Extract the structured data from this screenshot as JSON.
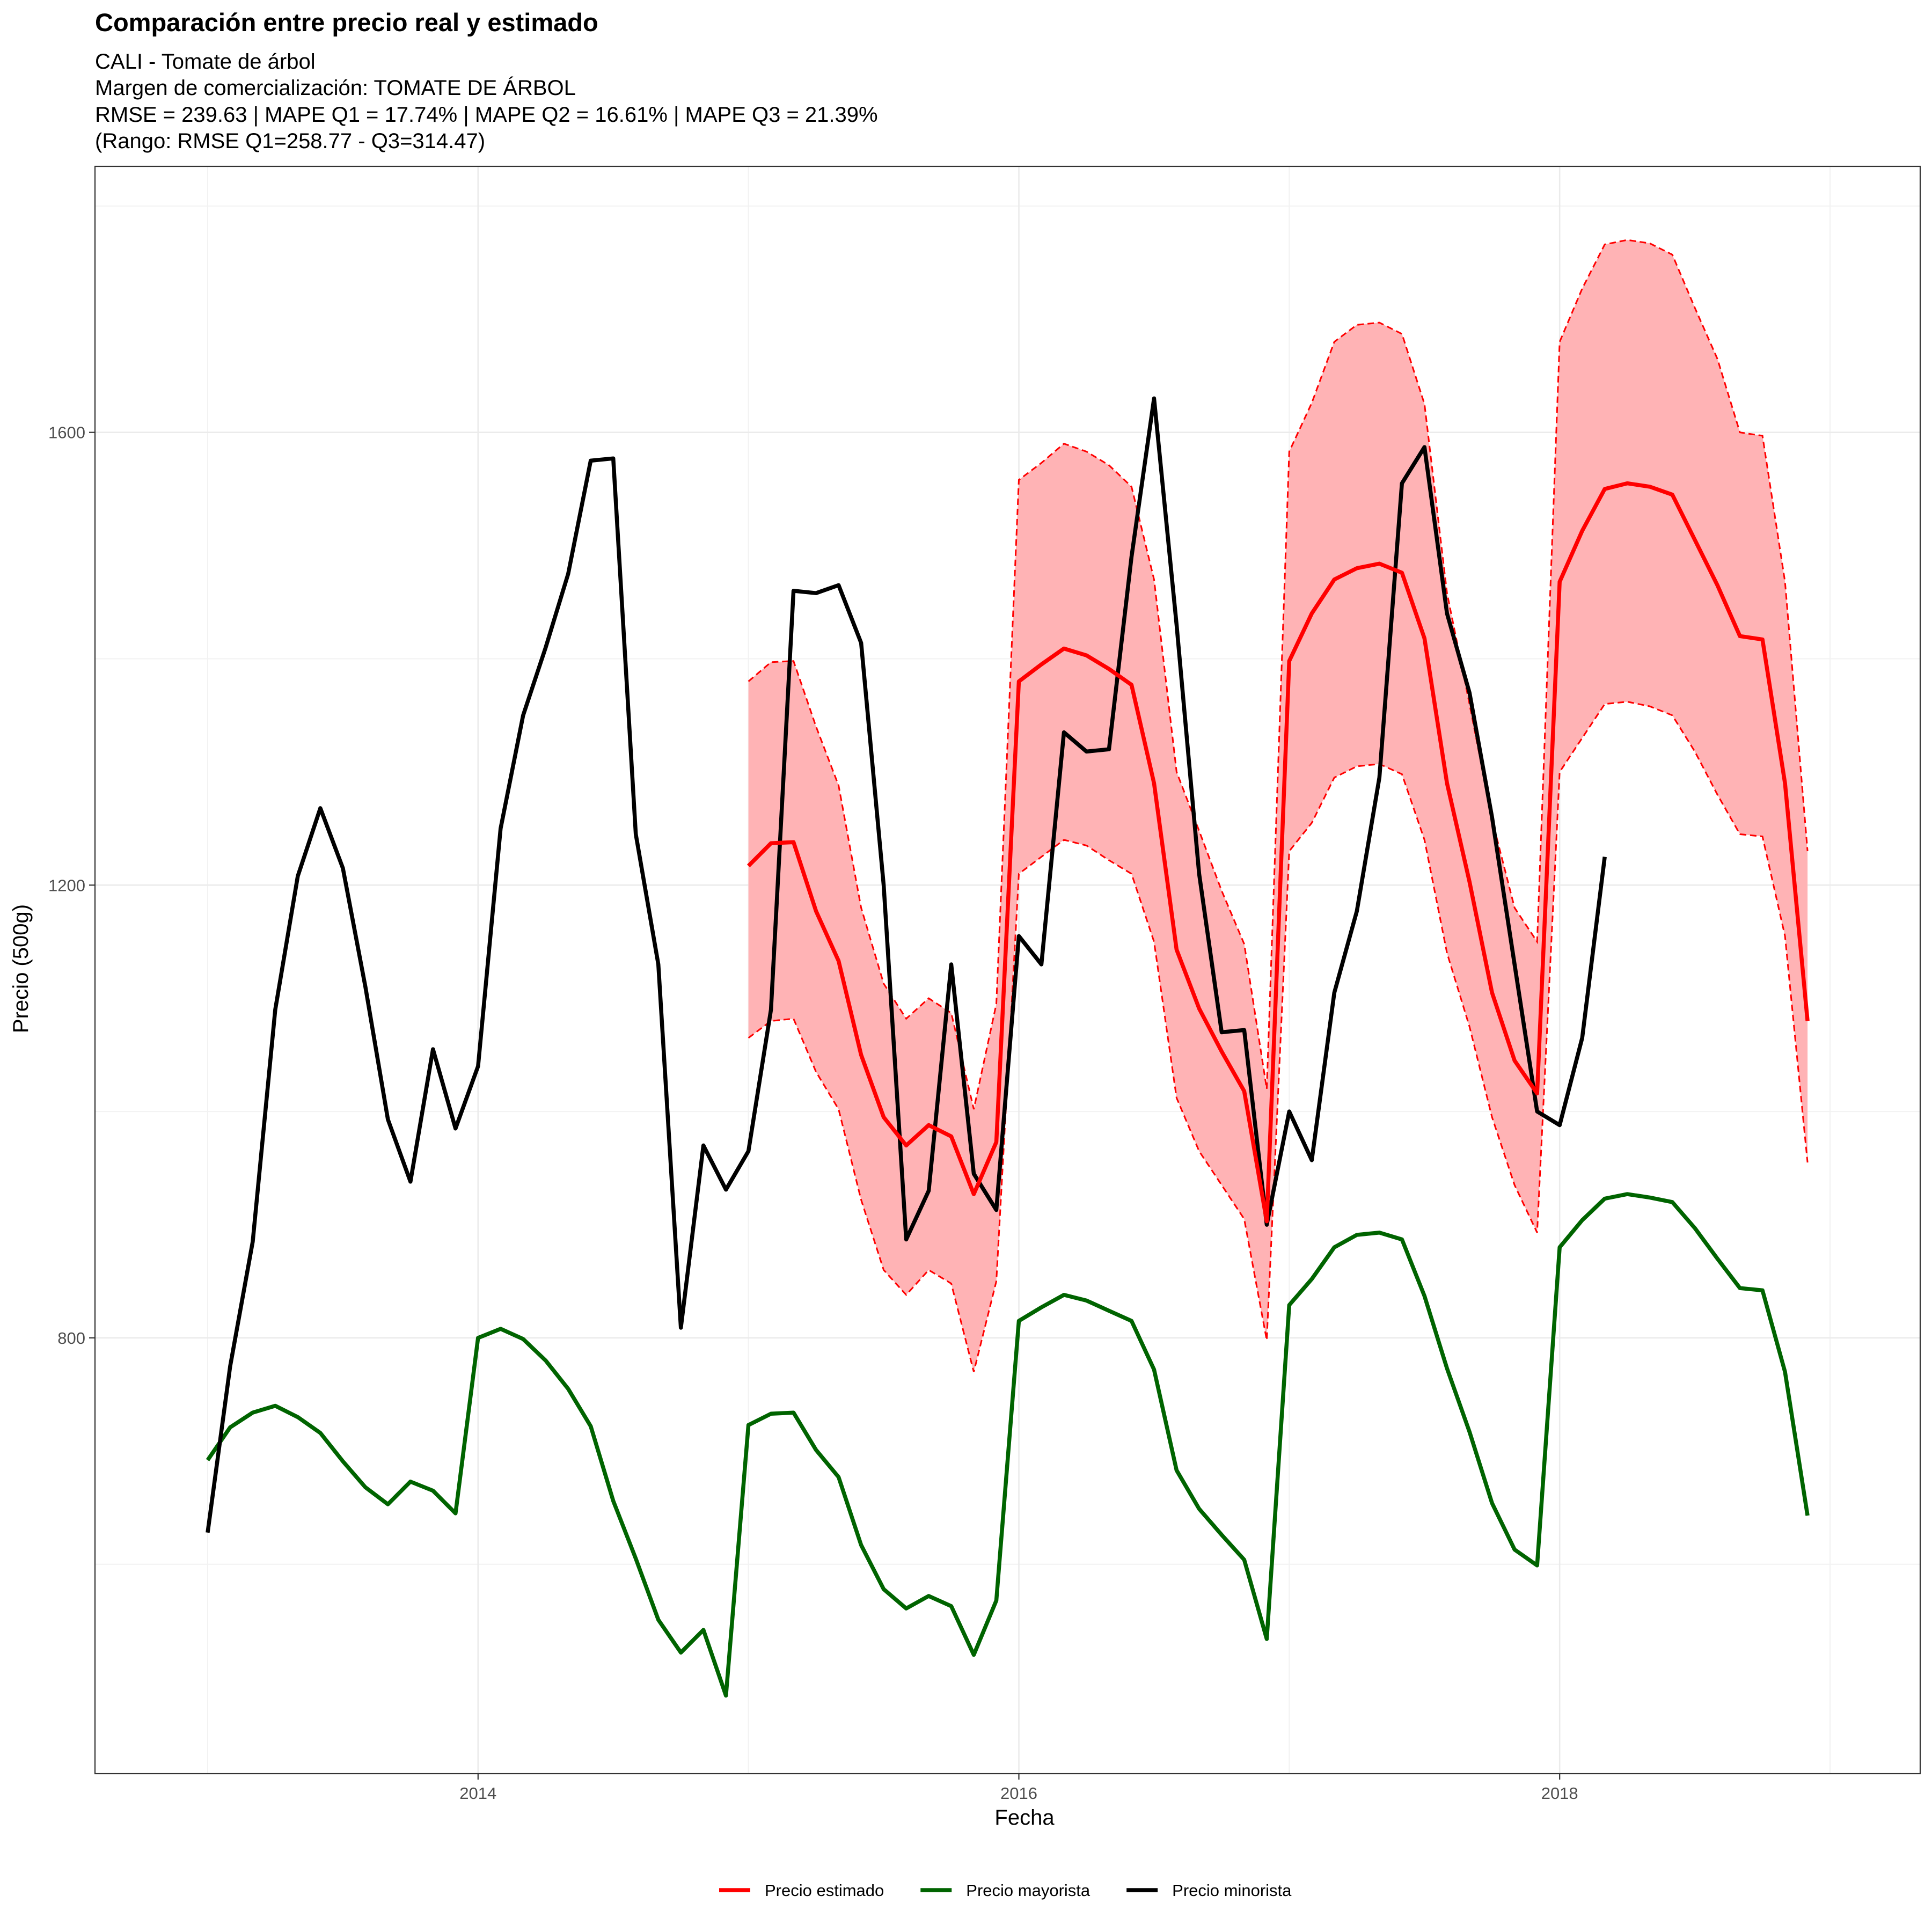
{
  "chart_data": {
    "type": "line",
    "title": "Comparación entre precio real y estimado",
    "subtitle_lines": [
      "CALI - Tomate de árbol",
      "Margen de comercialización: TOMATE DE ÁRBOL",
      "RMSE = 239.63 | MAPE Q1 = 17.74% | MAPE Q2 = 16.61% | MAPE Q3 = 21.39%",
      "(Rango: RMSE Q1=258.77 - Q3=314.47)"
    ],
    "xlabel": "Fecha",
    "ylabel": "Precio (500g)",
    "x_ticks": [
      {
        "label": "2014",
        "date": "2014-01"
      },
      {
        "label": "2016",
        "date": "2016-01"
      },
      {
        "label": "2018",
        "date": "2018-01"
      }
    ],
    "y_ticks": [
      800,
      1200,
      1600
    ],
    "x_range": [
      "2012-08",
      "2019-05"
    ],
    "ylim": [
      415,
      1835
    ],
    "grid": true,
    "legend_position": "bottom",
    "colors": {
      "estimado": "#FF0000",
      "mayorista": "#006400",
      "minorista": "#000000",
      "band_fill": "#FFB3B5"
    },
    "series": [
      {
        "name": "Precio minorista",
        "color": "#000000",
        "start": "2013-01",
        "values": [
          628,
          775,
          885,
          1090,
          1208,
          1268,
          1215,
          1110,
          993,
          938,
          1055,
          985,
          1040,
          1250,
          1350,
          1410,
          1475,
          1575,
          1577,
          1245,
          1130,
          809,
          970,
          931,
          965,
          1090,
          1460,
          1458,
          1465,
          1414,
          1200,
          887,
          930,
          1130,
          945,
          913,
          1155,
          1130,
          1335,
          1318,
          1320,
          1490,
          1630,
          1430,
          1210,
          1070,
          1072,
          900,
          1000,
          957,
          1105,
          1177,
          1295,
          1555,
          1587,
          1440,
          1370,
          1260,
          1130,
          1000,
          988,
          1065,
          1225
        ]
      },
      {
        "name": "Precio estimado",
        "color": "#FF0000",
        "start": "2015-01",
        "values": [
          1217,
          1237,
          1238,
          1177,
          1133,
          1050,
          995,
          970,
          988,
          978,
          927,
          973,
          1380,
          1395,
          1409,
          1403,
          1391,
          1377,
          1290,
          1143,
          1091,
          1053,
          1018,
          903,
          1398,
          1440,
          1470,
          1480,
          1484,
          1476,
          1418,
          1290,
          1203,
          1105,
          1045,
          1016,
          1468,
          1513,
          1550,
          1555,
          1552,
          1545,
          1505,
          1465,
          1420,
          1417,
          1290,
          1080
        ]
      },
      {
        "name": "Precio estimado Q1",
        "role": "band_lower",
        "start": "2015-01",
        "values": [
          1065,
          1080,
          1082,
          1035,
          1002,
          922,
          860,
          838,
          860,
          848,
          770,
          850,
          1210,
          1225,
          1240,
          1235,
          1222,
          1210,
          1150,
          1012,
          965,
          935,
          905,
          798,
          1230,
          1255,
          1295,
          1305,
          1307,
          1298,
          1240,
          1140,
          1075,
          995,
          935,
          893,
          1300,
          1330,
          1360,
          1362,
          1358,
          1350,
          1318,
          1280,
          1245,
          1243,
          1155,
          955
        ]
      },
      {
        "name": "Precio estimado Q3",
        "role": "band_upper",
        "start": "2015-01",
        "values": [
          1380,
          1397,
          1398,
          1340,
          1288,
          1180,
          1113,
          1082,
          1100,
          1087,
          1002,
          1095,
          1558,
          1573,
          1590,
          1583,
          1571,
          1552,
          1470,
          1300,
          1248,
          1195,
          1148,
          1020,
          1583,
          1626,
          1680,
          1695,
          1697,
          1687,
          1625,
          1458,
          1360,
          1258,
          1180,
          1150,
          1680,
          1727,
          1766,
          1770,
          1767,
          1757,
          1710,
          1665,
          1600,
          1597,
          1468,
          1230
        ]
      },
      {
        "name": "Precio mayorista",
        "color": "#006400",
        "start": "2013-01",
        "values": [
          692,
          721,
          734,
          740,
          730,
          716,
          691,
          668,
          653,
          673,
          665,
          645,
          800,
          808,
          799,
          780,
          755,
          722,
          656,
          605,
          551,
          522,
          542,
          484,
          723,
          733,
          734,
          701,
          677,
          617,
          578,
          561,
          572,
          563,
          520,
          568,
          815,
          827,
          838,
          833,
          824,
          815,
          772,
          683,
          649,
          626,
          604,
          534,
          829,
          852,
          880,
          891,
          893,
          887,
          837,
          773,
          717,
          654,
          613,
          599,
          880,
          904,
          923,
          927,
          924,
          920,
          897,
          870,
          844,
          842,
          770,
          643
        ]
      }
    ]
  }
}
